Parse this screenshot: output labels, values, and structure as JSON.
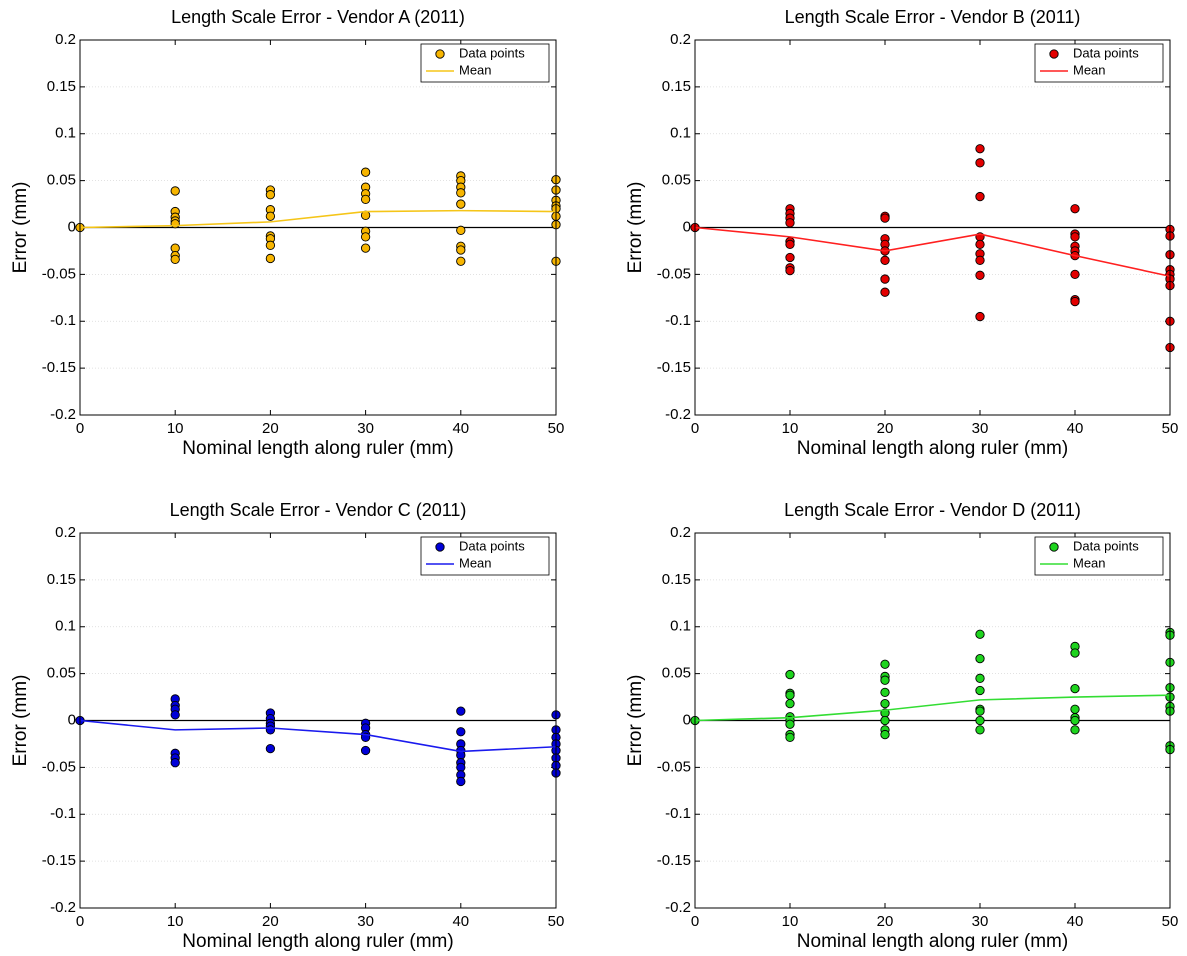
{
  "chart_data": [
    {
      "type": "scatter",
      "title": "Length Scale Error - Vendor A (2011)",
      "xlabel": "Nominal length along ruler (mm)",
      "ylabel": "Error (mm)",
      "xlim": [
        0,
        50
      ],
      "ylim": [
        -0.2,
        0.2
      ],
      "xticks": [
        0,
        10,
        20,
        30,
        40,
        50
      ],
      "yticks": [
        -0.2,
        -0.15,
        -0.1,
        -0.05,
        0,
        0.05,
        0.1,
        0.15,
        0.2
      ],
      "grid": "y",
      "zero_line": true,
      "legend": "upper right",
      "series": [
        {
          "name": "Data points",
          "kind": "marker",
          "color": "#f7b500",
          "x": [
            0,
            10,
            10,
            10,
            10,
            10,
            10,
            10,
            10,
            20,
            20,
            20,
            20,
            20,
            20,
            20,
            20,
            30,
            30,
            30,
            30,
            30,
            30,
            30,
            30,
            40,
            40,
            40,
            40,
            40,
            40,
            40,
            40,
            40,
            50,
            50,
            50,
            50,
            50,
            50,
            50,
            50
          ],
          "values": [
            0,
            0.039,
            0.017,
            0.011,
            0.007,
            0.004,
            -0.022,
            -0.03,
            -0.034,
            0.04,
            0.035,
            0.019,
            0.012,
            -0.009,
            -0.012,
            -0.019,
            -0.033,
            0.059,
            0.043,
            0.036,
            0.03,
            0.013,
            -0.004,
            -0.01,
            -0.022,
            0.055,
            0.05,
            0.043,
            0.037,
            0.025,
            -0.003,
            -0.02,
            -0.024,
            -0.036,
            0.051,
            0.04,
            0.029,
            0.023,
            0.02,
            0.012,
            0.003,
            -0.036
          ]
        },
        {
          "name": "Mean",
          "kind": "line",
          "color": "#f5c518",
          "x": [
            0,
            10,
            20,
            30,
            40,
            50
          ],
          "values": [
            0,
            0.002,
            0.006,
            0.017,
            0.018,
            0.017
          ]
        }
      ]
    },
    {
      "type": "scatter",
      "title": "Length Scale Error - Vendor B (2011)",
      "xlabel": "Nominal length along ruler (mm)",
      "ylabel": "Error (mm)",
      "xlim": [
        0,
        50
      ],
      "ylim": [
        -0.2,
        0.2
      ],
      "xticks": [
        0,
        10,
        20,
        30,
        40,
        50
      ],
      "yticks": [
        -0.2,
        -0.15,
        -0.1,
        -0.05,
        0,
        0.05,
        0.1,
        0.15,
        0.2
      ],
      "grid": "y",
      "zero_line": true,
      "legend": "upper right",
      "series": [
        {
          "name": "Data points",
          "kind": "marker",
          "color": "#e30000",
          "x": [
            0,
            10,
            10,
            10,
            10,
            10,
            10,
            10,
            10,
            10,
            20,
            20,
            20,
            20,
            20,
            20,
            20,
            20,
            30,
            30,
            30,
            30,
            30,
            30,
            30,
            30,
            30,
            40,
            40,
            40,
            40,
            40,
            40,
            40,
            40,
            40,
            50,
            50,
            50,
            50,
            50,
            50,
            50,
            50,
            50
          ],
          "values": [
            0,
            0.02,
            0.015,
            0.01,
            0.005,
            -0.015,
            -0.018,
            -0.032,
            -0.043,
            -0.046,
            0.012,
            0.01,
            -0.012,
            -0.018,
            -0.025,
            -0.035,
            -0.055,
            -0.069,
            0.084,
            0.069,
            0.033,
            -0.01,
            -0.018,
            -0.028,
            -0.035,
            -0.051,
            -0.095,
            0.02,
            -0.007,
            -0.01,
            -0.02,
            -0.025,
            -0.03,
            -0.05,
            -0.077,
            -0.079,
            -0.002,
            -0.009,
            -0.029,
            -0.045,
            -0.05,
            -0.055,
            -0.062,
            -0.1,
            -0.128
          ]
        },
        {
          "name": "Mean",
          "kind": "line",
          "color": "#ff2020",
          "x": [
            0,
            10,
            20,
            30,
            40,
            50
          ],
          "values": [
            0,
            -0.01,
            -0.025,
            -0.007,
            -0.03,
            -0.052
          ]
        }
      ]
    },
    {
      "type": "scatter",
      "title": "Length Scale Error - Vendor C (2011)",
      "xlabel": "Nominal length along ruler (mm)",
      "ylabel": "Error (mm)",
      "xlim": [
        0,
        50
      ],
      "ylim": [
        -0.2,
        0.2
      ],
      "xticks": [
        0,
        10,
        20,
        30,
        40,
        50
      ],
      "yticks": [
        -0.2,
        -0.15,
        -0.1,
        -0.05,
        0,
        0.05,
        0.1,
        0.15,
        0.2
      ],
      "grid": "y",
      "zero_line": true,
      "legend": "upper right",
      "series": [
        {
          "name": "Data points",
          "kind": "marker",
          "color": "#0000d8",
          "x": [
            0,
            10,
            10,
            10,
            10,
            10,
            10,
            10,
            20,
            20,
            20,
            20,
            20,
            20,
            30,
            30,
            30,
            30,
            30,
            40,
            40,
            40,
            40,
            40,
            40,
            40,
            40,
            40,
            50,
            50,
            50,
            50,
            50,
            50,
            50,
            50
          ],
          "values": [
            0,
            0.023,
            0.016,
            0.012,
            0.006,
            -0.035,
            -0.04,
            -0.045,
            0.008,
            0.002,
            -0.003,
            -0.006,
            -0.01,
            -0.03,
            -0.003,
            -0.008,
            -0.015,
            -0.018,
            -0.032,
            0.01,
            -0.012,
            -0.025,
            -0.032,
            -0.037,
            -0.045,
            -0.05,
            -0.058,
            -0.065,
            0.006,
            -0.01,
            -0.018,
            -0.025,
            -0.032,
            -0.04,
            -0.048,
            -0.056
          ]
        },
        {
          "name": "Mean",
          "kind": "line",
          "color": "#1a1aee",
          "x": [
            0,
            10,
            20,
            30,
            40,
            50
          ],
          "values": [
            0,
            -0.01,
            -0.008,
            -0.015,
            -0.033,
            -0.028
          ]
        }
      ]
    },
    {
      "type": "scatter",
      "title": "Length Scale Error - Vendor D (2011)",
      "xlabel": "Nominal length along ruler (mm)",
      "ylabel": "Error (mm)",
      "xlim": [
        0,
        50
      ],
      "ylim": [
        -0.2,
        0.2
      ],
      "xticks": [
        0,
        10,
        20,
        30,
        40,
        50
      ],
      "yticks": [
        -0.2,
        -0.15,
        -0.1,
        -0.05,
        0,
        0.05,
        0.1,
        0.15,
        0.2
      ],
      "grid": "y",
      "zero_line": true,
      "legend": "upper right",
      "series": [
        {
          "name": "Data points",
          "kind": "marker",
          "color": "#1ed41e",
          "x": [
            0,
            10,
            10,
            10,
            10,
            10,
            10,
            10,
            10,
            10,
            20,
            20,
            20,
            20,
            20,
            20,
            20,
            20,
            20,
            30,
            30,
            30,
            30,
            30,
            30,
            30,
            30,
            40,
            40,
            40,
            40,
            40,
            40,
            40,
            50,
            50,
            50,
            50,
            50,
            50,
            50,
            50,
            50
          ],
          "values": [
            0,
            0.049,
            0.029,
            0.027,
            0.018,
            0.004,
            0,
            -0.004,
            -0.015,
            -0.018,
            0.06,
            0.047,
            0.043,
            0.03,
            0.018,
            0.008,
            0,
            -0.01,
            -0.015,
            0.092,
            0.066,
            0.045,
            0.032,
            0.012,
            0.01,
            0,
            -0.01,
            0.079,
            0.072,
            0.034,
            0.012,
            0.003,
            0,
            -0.01,
            0.094,
            0.091,
            0.062,
            0.035,
            0.025,
            0.015,
            0.01,
            -0.027,
            -0.031
          ]
        },
        {
          "name": "Mean",
          "kind": "line",
          "color": "#33dd33",
          "x": [
            0,
            10,
            20,
            30,
            40,
            50
          ],
          "values": [
            0,
            0.003,
            0.011,
            0.022,
            0.025,
            0.027
          ]
        }
      ]
    }
  ]
}
